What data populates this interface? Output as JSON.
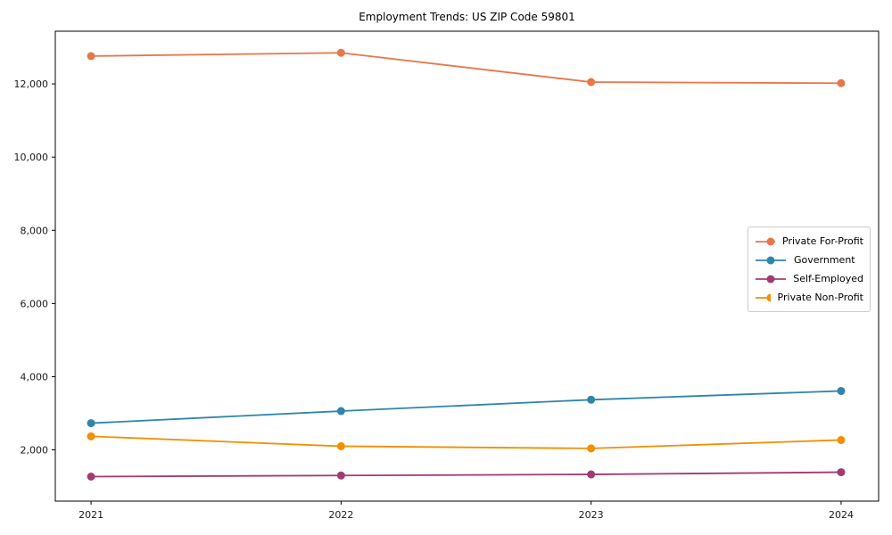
{
  "chart_data": {
    "type": "line",
    "title": "Employment Trends: US ZIP Code 59801",
    "x": [
      2021,
      2022,
      2023,
      2024
    ],
    "xtick_labels": [
      "2021",
      "2022",
      "2023",
      "2024"
    ],
    "yticks": [
      2000,
      4000,
      6000,
      8000,
      10000,
      12000
    ],
    "ytick_labels": [
      "2,000",
      "4,000",
      "6,000",
      "8,000",
      "10,000",
      "12,000"
    ],
    "series": [
      {
        "name": "Private For-Profit",
        "color": "#E8764B",
        "values": [
          12760,
          12850,
          12050,
          12020
        ]
      },
      {
        "name": "Government",
        "color": "#2E86AB",
        "values": [
          2730,
          3060,
          3370,
          3610
        ]
      },
      {
        "name": "Self-Employed",
        "color": "#A23B72",
        "values": [
          1270,
          1300,
          1330,
          1390
        ]
      },
      {
        "name": "Private Non-Profit",
        "color": "#F18F01",
        "values": [
          2370,
          2100,
          2040,
          2270
        ]
      }
    ],
    "xlabel": "",
    "ylabel": "",
    "xlim": [
      2020.857,
      2024.15
    ],
    "ylim": [
      600,
      13440
    ],
    "grid": false,
    "legend_position": "center right",
    "axis_color": "#000000",
    "tick_label_color": "#1a1a1a"
  }
}
